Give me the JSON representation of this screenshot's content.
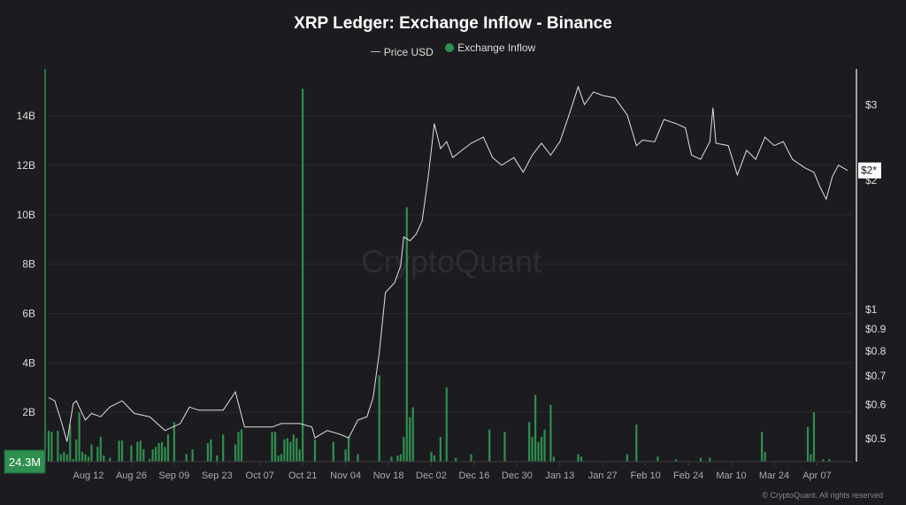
{
  "chart_data": {
    "type": "bar+line",
    "title": "XRP Ledger: Exchange Inflow - Binance",
    "legend": {
      "placement": "top-center",
      "entries": [
        "Price USD",
        "Exchange Inflow"
      ]
    },
    "watermark": "CryptoQuant",
    "footer": "© CryptoQuant. All rights reserved",
    "colors": {
      "background": "#1c1c20",
      "inflow": "#2f8f4e",
      "price": "#e0e0e0",
      "grid": "#2a2a2f"
    },
    "xlim": [
      "2024-07-30",
      "2025-04-17"
    ],
    "x_ticks": [
      {
        "date": "2024-08-12",
        "label": "Aug 12"
      },
      {
        "date": "2024-08-26",
        "label": "Aug 26"
      },
      {
        "date": "2024-09-09",
        "label": "Sep 09"
      },
      {
        "date": "2024-09-23",
        "label": "Sep 23"
      },
      {
        "date": "2024-10-07",
        "label": "Oct 07"
      },
      {
        "date": "2024-10-21",
        "label": "Oct 21"
      },
      {
        "date": "2024-11-04",
        "label": "Nov 04"
      },
      {
        "date": "2024-11-18",
        "label": "Nov 18"
      },
      {
        "date": "2024-12-02",
        "label": "Dec 02"
      },
      {
        "date": "2024-12-16",
        "label": "Dec 16"
      },
      {
        "date": "2024-12-30",
        "label": "Dec 30"
      },
      {
        "date": "2025-01-13",
        "label": "Jan 13"
      },
      {
        "date": "2025-01-27",
        "label": "Jan 27"
      },
      {
        "date": "2025-02-10",
        "label": "Feb 10"
      },
      {
        "date": "2025-02-24",
        "label": "Feb 24"
      },
      {
        "date": "2025-03-10",
        "label": "Mar 10"
      },
      {
        "date": "2025-03-24",
        "label": "Mar 24"
      },
      {
        "date": "2025-04-07",
        "label": "Apr 07"
      }
    ],
    "left_axis": {
      "unit": "B",
      "ylim": [
        0,
        15.9
      ],
      "ticks": [
        {
          "v": 2,
          "label": "2B"
        },
        {
          "v": 4,
          "label": "4B"
        },
        {
          "v": 6,
          "label": "6B"
        },
        {
          "v": 8,
          "label": "8B"
        },
        {
          "v": 10,
          "label": "10B"
        },
        {
          "v": 12,
          "label": "12B"
        },
        {
          "v": 14,
          "label": "14B"
        }
      ],
      "grid": true,
      "crosshair_label": "24.3M"
    },
    "right_axis": {
      "scale": "log",
      "ylim": [
        0.44,
        3.62
      ],
      "ticks": [
        {
          "v": 3,
          "label": "$3"
        },
        {
          "v": 2,
          "label": "$2"
        },
        {
          "v": 1,
          "label": "$1"
        },
        {
          "v": 0.9,
          "label": "$0.9"
        },
        {
          "v": 0.8,
          "label": "$0.8"
        },
        {
          "v": 0.7,
          "label": "$0.7"
        },
        {
          "v": 0.6,
          "label": "$0.6"
        },
        {
          "v": 0.5,
          "label": "$0.5"
        }
      ],
      "current_value": 2.1,
      "current_label": "$2*"
    },
    "series": [
      {
        "name": "Exchange Inflow",
        "type": "bar",
        "unit": "B",
        "data": [
          [
            "2024-07-30",
            1.25
          ],
          [
            "2024-07-31",
            1.2
          ],
          [
            "2024-08-02",
            1.25
          ],
          [
            "2024-08-03",
            0.3
          ],
          [
            "2024-08-04",
            0.4
          ],
          [
            "2024-08-05",
            0.3
          ],
          [
            "2024-08-06",
            1.5
          ],
          [
            "2024-08-07",
            0.1
          ],
          [
            "2024-08-08",
            0.9
          ],
          [
            "2024-08-09",
            2.0
          ],
          [
            "2024-08-10",
            0.4
          ],
          [
            "2024-08-11",
            0.3
          ],
          [
            "2024-08-12",
            0.2
          ],
          [
            "2024-08-13",
            0.7
          ],
          [
            "2024-08-15",
            0.6
          ],
          [
            "2024-08-16",
            1.0
          ],
          [
            "2024-08-17",
            0.25
          ],
          [
            "2024-08-19",
            0.15
          ],
          [
            "2024-08-22",
            0.85
          ],
          [
            "2024-08-23",
            0.85
          ],
          [
            "2024-08-26",
            0.65
          ],
          [
            "2024-08-28",
            0.8
          ],
          [
            "2024-08-29",
            0.85
          ],
          [
            "2024-08-30",
            0.5
          ],
          [
            "2024-09-01",
            0.1
          ],
          [
            "2024-09-02",
            0.5
          ],
          [
            "2024-09-03",
            0.6
          ],
          [
            "2024-09-04",
            0.75
          ],
          [
            "2024-09-05",
            0.8
          ],
          [
            "2024-09-06",
            0.6
          ],
          [
            "2024-09-07",
            1.1
          ],
          [
            "2024-09-09",
            1.6
          ],
          [
            "2024-09-13",
            0.3
          ],
          [
            "2024-09-15",
            0.5
          ],
          [
            "2024-09-20",
            0.75
          ],
          [
            "2024-09-21",
            0.9
          ],
          [
            "2024-09-23",
            0.25
          ],
          [
            "2024-09-25",
            1.1
          ],
          [
            "2024-09-29",
            0.7
          ],
          [
            "2024-09-30",
            1.2
          ],
          [
            "2024-10-01",
            1.3
          ],
          [
            "2024-10-11",
            1.2
          ],
          [
            "2024-10-12",
            1.2
          ],
          [
            "2024-10-13",
            0.25
          ],
          [
            "2024-10-14",
            0.3
          ],
          [
            "2024-10-15",
            0.9
          ],
          [
            "2024-10-16",
            0.95
          ],
          [
            "2024-10-17",
            0.8
          ],
          [
            "2024-10-18",
            1.1
          ],
          [
            "2024-10-19",
            0.95
          ],
          [
            "2024-10-20",
            0.5
          ],
          [
            "2024-10-21",
            15.1
          ],
          [
            "2024-10-25",
            0.9
          ],
          [
            "2024-10-31",
            0.8
          ],
          [
            "2024-11-04",
            0.5
          ],
          [
            "2024-11-05",
            1.0
          ],
          [
            "2024-11-08",
            0.3
          ],
          [
            "2024-11-15",
            3.5
          ],
          [
            "2024-11-19",
            0.2
          ],
          [
            "2024-11-21",
            0.25
          ],
          [
            "2024-11-22",
            0.3
          ],
          [
            "2024-11-23",
            1.0
          ],
          [
            "2024-11-24",
            10.3
          ],
          [
            "2024-11-25",
            1.8
          ],
          [
            "2024-11-26",
            2.2
          ],
          [
            "2024-12-02",
            0.4
          ],
          [
            "2024-12-03",
            0.25
          ],
          [
            "2024-12-05",
            1.0
          ],
          [
            "2024-12-07",
            3.0
          ],
          [
            "2024-12-10",
            0.15
          ],
          [
            "2024-12-15",
            0.3
          ],
          [
            "2024-12-21",
            1.3
          ],
          [
            "2024-12-26",
            1.2
          ],
          [
            "2025-01-03",
            1.6
          ],
          [
            "2025-01-04",
            1.0
          ],
          [
            "2025-01-05",
            2.7
          ],
          [
            "2025-01-06",
            0.8
          ],
          [
            "2025-01-07",
            1.0
          ],
          [
            "2025-01-08",
            1.3
          ],
          [
            "2025-01-10",
            2.3
          ],
          [
            "2025-01-11",
            0.2
          ],
          [
            "2025-01-19",
            0.3
          ],
          [
            "2025-01-20",
            0.2
          ],
          [
            "2025-02-04",
            0.3
          ],
          [
            "2025-02-07",
            1.5
          ],
          [
            "2025-02-14",
            0.2
          ],
          [
            "2025-02-20",
            0.1
          ],
          [
            "2025-02-28",
            0.15
          ],
          [
            "2025-03-03",
            0.15
          ],
          [
            "2025-03-20",
            1.2
          ],
          [
            "2025-03-21",
            0.4
          ],
          [
            "2025-04-04",
            1.4
          ],
          [
            "2025-04-05",
            0.3
          ],
          [
            "2025-04-06",
            2.0
          ],
          [
            "2025-04-09",
            0.1
          ],
          [
            "2025-04-11",
            0.1
          ]
        ]
      },
      {
        "name": "Price USD",
        "type": "line",
        "unit": "USD",
        "data": [
          [
            "2024-07-30",
            0.62
          ],
          [
            "2024-08-01",
            0.61
          ],
          [
            "2024-08-03",
            0.55
          ],
          [
            "2024-08-05",
            0.49
          ],
          [
            "2024-08-07",
            0.6
          ],
          [
            "2024-08-08",
            0.61
          ],
          [
            "2024-08-11",
            0.55
          ],
          [
            "2024-08-13",
            0.57
          ],
          [
            "2024-08-16",
            0.56
          ],
          [
            "2024-08-19",
            0.59
          ],
          [
            "2024-08-23",
            0.61
          ],
          [
            "2024-08-27",
            0.57
          ],
          [
            "2024-09-01",
            0.56
          ],
          [
            "2024-09-06",
            0.52
          ],
          [
            "2024-09-11",
            0.54
          ],
          [
            "2024-09-14",
            0.59
          ],
          [
            "2024-09-17",
            0.58
          ],
          [
            "2024-09-21",
            0.58
          ],
          [
            "2024-09-25",
            0.58
          ],
          [
            "2024-09-29",
            0.64
          ],
          [
            "2024-10-02",
            0.53
          ],
          [
            "2024-10-06",
            0.53
          ],
          [
            "2024-10-11",
            0.53
          ],
          [
            "2024-10-14",
            0.54
          ],
          [
            "2024-10-20",
            0.54
          ],
          [
            "2024-10-24",
            0.53
          ],
          [
            "2024-10-25",
            0.5
          ],
          [
            "2024-10-29",
            0.52
          ],
          [
            "2024-11-02",
            0.51
          ],
          [
            "2024-11-05",
            0.5
          ],
          [
            "2024-11-08",
            0.55
          ],
          [
            "2024-11-11",
            0.56
          ],
          [
            "2024-11-13",
            0.62
          ],
          [
            "2024-11-15",
            0.79
          ],
          [
            "2024-11-17",
            1.09
          ],
          [
            "2024-11-20",
            1.15
          ],
          [
            "2024-11-22",
            1.26
          ],
          [
            "2024-11-23",
            1.47
          ],
          [
            "2024-11-25",
            1.44
          ],
          [
            "2024-11-27",
            1.49
          ],
          [
            "2024-11-29",
            1.6
          ],
          [
            "2024-12-01",
            2.03
          ],
          [
            "2024-12-03",
            2.7
          ],
          [
            "2024-12-05",
            2.36
          ],
          [
            "2024-12-07",
            2.45
          ],
          [
            "2024-12-09",
            2.25
          ],
          [
            "2024-12-12",
            2.34
          ],
          [
            "2024-12-15",
            2.43
          ],
          [
            "2024-12-19",
            2.51
          ],
          [
            "2024-12-22",
            2.25
          ],
          [
            "2024-12-25",
            2.16
          ],
          [
            "2024-12-29",
            2.25
          ],
          [
            "2025-01-01",
            2.08
          ],
          [
            "2025-01-04",
            2.28
          ],
          [
            "2025-01-07",
            2.43
          ],
          [
            "2025-01-10",
            2.28
          ],
          [
            "2025-01-13",
            2.45
          ],
          [
            "2025-01-16",
            2.83
          ],
          [
            "2025-01-19",
            3.29
          ],
          [
            "2025-01-21",
            2.99
          ],
          [
            "2025-01-24",
            3.2
          ],
          [
            "2025-01-27",
            3.14
          ],
          [
            "2025-01-31",
            3.1
          ],
          [
            "2025-02-04",
            2.83
          ],
          [
            "2025-02-07",
            2.4
          ],
          [
            "2025-02-09",
            2.47
          ],
          [
            "2025-02-13",
            2.45
          ],
          [
            "2025-02-16",
            2.76
          ],
          [
            "2025-02-20",
            2.7
          ],
          [
            "2025-02-23",
            2.64
          ],
          [
            "2025-02-25",
            2.28
          ],
          [
            "2025-02-28",
            2.23
          ],
          [
            "2025-03-03",
            2.45
          ],
          [
            "2025-03-04",
            2.94
          ],
          [
            "2025-03-05",
            2.43
          ],
          [
            "2025-03-09",
            2.4
          ],
          [
            "2025-03-12",
            2.05
          ],
          [
            "2025-03-15",
            2.34
          ],
          [
            "2025-03-18",
            2.23
          ],
          [
            "2025-03-21",
            2.51
          ],
          [
            "2025-03-24",
            2.4
          ],
          [
            "2025-03-27",
            2.45
          ],
          [
            "2025-03-30",
            2.23
          ],
          [
            "2025-04-03",
            2.13
          ],
          [
            "2025-04-06",
            2.08
          ],
          [
            "2025-04-08",
            1.92
          ],
          [
            "2025-04-10",
            1.8
          ],
          [
            "2025-04-12",
            2.03
          ],
          [
            "2025-04-14",
            2.16
          ],
          [
            "2025-04-17",
            2.1
          ]
        ]
      }
    ]
  }
}
